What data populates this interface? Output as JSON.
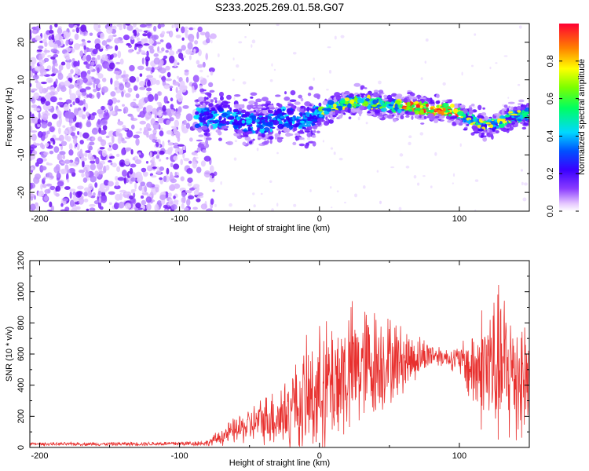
{
  "title": "S233.2025.269.01.58.G07",
  "chart_data": [
    {
      "type": "heatmap",
      "name": "spectrogram",
      "xlabel": "Height of straight line (km)",
      "ylabel": "Frequency (Hz)",
      "xlim": [
        -207,
        150
      ],
      "ylim": [
        -25,
        25
      ],
      "xticks": [
        -200,
        -100,
        0,
        100
      ],
      "yticks": [
        -20,
        -10,
        0,
        10,
        20
      ],
      "ridge": {
        "x": [
          -70,
          -55,
          -40,
          -25,
          -12,
          0,
          10,
          20,
          35,
          50,
          65,
          80,
          95,
          105,
          115,
          125,
          135,
          150
        ],
        "y": [
          0,
          -1,
          -2,
          0,
          -1,
          1,
          3,
          4,
          4,
          3,
          3,
          2,
          2,
          0,
          -2,
          -2,
          0,
          1
        ]
      },
      "noise_region_x": [
        -207,
        -80
      ],
      "colorbar": {
        "label": "Normalized spectral amplitude",
        "range": [
          0,
          1
        ],
        "ticks": [
          "0.0",
          "0.2",
          "0.4",
          "0.6",
          "0.8"
        ],
        "tick_values": [
          0,
          0.2,
          0.4,
          0.6,
          0.8
        ]
      }
    },
    {
      "type": "line",
      "name": "snr",
      "xlabel": "Height of straight line (km)",
      "ylabel": "SNR (10 * v/v)",
      "xlim": [
        -207,
        150
      ],
      "ylim": [
        0,
        1200
      ],
      "xticks": [
        -200,
        -100,
        0,
        100
      ],
      "yticks": [
        0,
        200,
        400,
        600,
        800,
        1000,
        1200
      ],
      "color": "#e8302e",
      "envelope": {
        "x": [
          -207,
          -150,
          -100,
          -80,
          -70,
          -60,
          -50,
          -40,
          -30,
          -20,
          -10,
          0,
          10,
          20,
          30,
          40,
          50,
          60,
          70,
          80,
          90,
          100,
          110,
          120,
          130,
          140,
          150
        ],
        "mean": [
          22,
          22,
          25,
          28,
          70,
          110,
          140,
          180,
          200,
          230,
          300,
          360,
          420,
          480,
          520,
          540,
          560,
          560,
          580,
          600,
          580,
          560,
          500,
          520,
          500,
          480,
          450
        ],
        "amp": [
          10,
          12,
          15,
          20,
          60,
          90,
          120,
          160,
          220,
          300,
          380,
          420,
          450,
          460,
          420,
          380,
          300,
          230,
          150,
          90,
          60,
          100,
          300,
          500,
          550,
          500,
          400
        ]
      }
    }
  ]
}
